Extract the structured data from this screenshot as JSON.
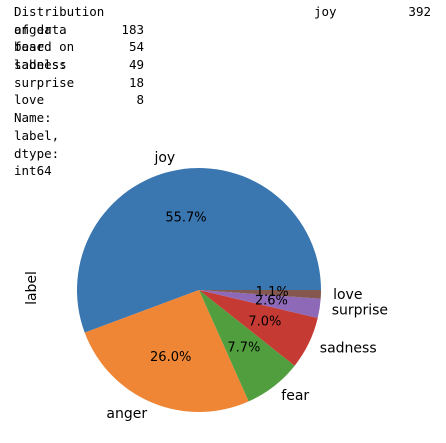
{
  "console_output": {
    "header_text": "Distribution of data based on labels:",
    "rows": [
      {
        "label": "joy",
        "count": "392"
      },
      {
        "label": "anger",
        "count": "183"
      },
      {
        "label": "fear",
        "count": "54"
      },
      {
        "label": "sadness",
        "count": "49"
      },
      {
        "label": "surprise",
        "count": "18"
      },
      {
        "label": "love",
        "count": "8"
      }
    ],
    "footer": "Name: label, dtype: int64"
  },
  "chart_data": {
    "type": "pie",
    "ylabel": "label",
    "slices": [
      {
        "label": "joy",
        "value": 392,
        "pct_label": "55.7%",
        "color": "#3a76af"
      },
      {
        "label": "anger",
        "value": 183,
        "pct_label": "26.0%",
        "color": "#ef8636"
      },
      {
        "label": "fear",
        "value": 54,
        "pct_label": "7.7%",
        "color": "#519e3e"
      },
      {
        "label": "sadness",
        "value": 49,
        "pct_label": "7.0%",
        "color": "#c53a32"
      },
      {
        "label": "surprise",
        "value": 18,
        "pct_label": "2.6%",
        "color": "#8d69b8"
      },
      {
        "label": "love",
        "value": 8,
        "pct_label": "1.1%",
        "color": "#84584e"
      }
    ],
    "start_angle": "0 degrees (3 o'clock)",
    "direction": "counter-clockwise"
  }
}
